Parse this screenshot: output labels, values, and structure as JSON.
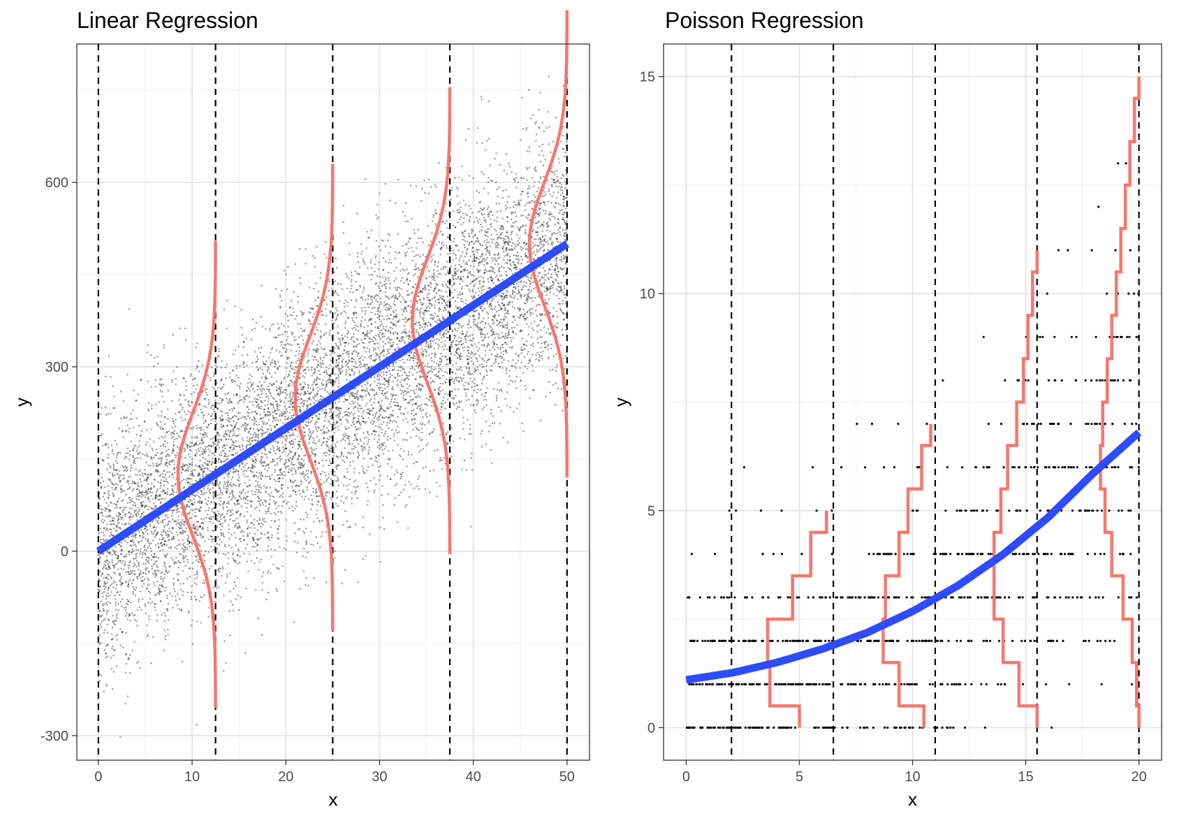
{
  "chart_data": [
    {
      "type": "scatter",
      "title": "Linear Regression",
      "xlabel": "x",
      "ylabel": "y",
      "xlim": [
        -2.3,
        52.4
      ],
      "ylim": [
        -340,
        825
      ],
      "x_ticks": [
        0,
        10,
        20,
        30,
        40,
        50
      ],
      "x_tick_labels": [
        "0",
        "10",
        "20",
        "30",
        "40",
        "50"
      ],
      "y_ticks": [
        -300,
        0,
        300,
        600
      ],
      "y_tick_labels": [
        "-300",
        "0",
        "300",
        "600"
      ],
      "grid": true,
      "legend": "none",
      "points": {
        "description_source": "simulated cloud around fitted line",
        "n": 9000,
        "x_range": [
          0,
          50
        ],
        "line_intercept": 0,
        "line_slope": 10,
        "residual_sd": 100,
        "color": "#000000"
      },
      "series": [
        {
          "kind": "fitted-line",
          "x": [
            0,
            50
          ],
          "y": [
            0,
            500
          ],
          "color": "#2d4cff"
        }
      ],
      "reference_lines_x": [
        0,
        12.5,
        25,
        37.5,
        50
      ],
      "density_curves": {
        "type": "normal",
        "at_x": [
          12.5,
          25,
          37.5,
          50
        ],
        "means": [
          125,
          250,
          375,
          500
        ],
        "sd": 100,
        "span_y": [
          -260,
          810
        ],
        "color": "#f8766d"
      }
    },
    {
      "type": "scatter",
      "title": "Poisson Regression",
      "xlabel": "x",
      "ylabel": "y",
      "xlim": [
        -1.0,
        21.0
      ],
      "ylim": [
        -0.75,
        15.75
      ],
      "x_ticks": [
        0,
        5,
        10,
        15,
        20
      ],
      "x_tick_labels": [
        "0",
        "5",
        "10",
        "15",
        "20"
      ],
      "y_ticks": [
        0,
        5,
        10,
        15
      ],
      "y_tick_labels": [
        "0",
        "5",
        "10",
        "15"
      ],
      "grid": true,
      "legend": "none",
      "points": {
        "description_source": "simulated counts around fitted curve",
        "n": 900,
        "x_range": [
          0,
          20
        ],
        "color": "#000000"
      },
      "series": [
        {
          "kind": "fitted-curve",
          "x": [
            0,
            2,
            4,
            6,
            8,
            10,
            12,
            14,
            16,
            18,
            20
          ],
          "y": [
            1.1,
            1.26,
            1.5,
            1.81,
            2.19,
            2.68,
            3.27,
            3.99,
            4.85,
            5.87,
            6.8
          ],
          "color": "#2d4cff"
        }
      ],
      "reference_lines_x": [
        2,
        6.5,
        11,
        15.5,
        20
      ],
      "probability_steps": [
        {
          "at_x": 6.5,
          "y": [
            0,
            1,
            2,
            3,
            4,
            5
          ],
          "x": [
            5.0,
            3.7,
            3.6,
            4.7,
            5.5,
            6.2
          ]
        },
        {
          "at_x": 11,
          "y": [
            0,
            1,
            2,
            3,
            4,
            5,
            6,
            7
          ],
          "x": [
            10.5,
            9.4,
            8.7,
            8.8,
            9.4,
            9.8,
            10.4,
            10.8
          ]
        },
        {
          "at_x": 15.5,
          "y": [
            0,
            1,
            2,
            3,
            4,
            5,
            6,
            7,
            8,
            9,
            10,
            11
          ],
          "x": [
            15.5,
            14.7,
            14.0,
            13.6,
            13.6,
            13.9,
            14.2,
            14.6,
            14.9,
            15.1,
            15.3,
            15.5
          ],
          "x_note": "approximate"
        },
        {
          "at_x": 20,
          "y": [
            0,
            1,
            2,
            3,
            4,
            5,
            6,
            7,
            8,
            9,
            10,
            11,
            12,
            13,
            14,
            15
          ],
          "x": [
            20.0,
            19.9,
            19.7,
            19.3,
            18.8,
            18.5,
            18.3,
            18.4,
            18.6,
            18.8,
            19.0,
            19.2,
            19.4,
            19.6,
            19.8,
            20.0
          ],
          "x_note": "approximate"
        }
      ],
      "step_color": "#f8766d"
    }
  ]
}
